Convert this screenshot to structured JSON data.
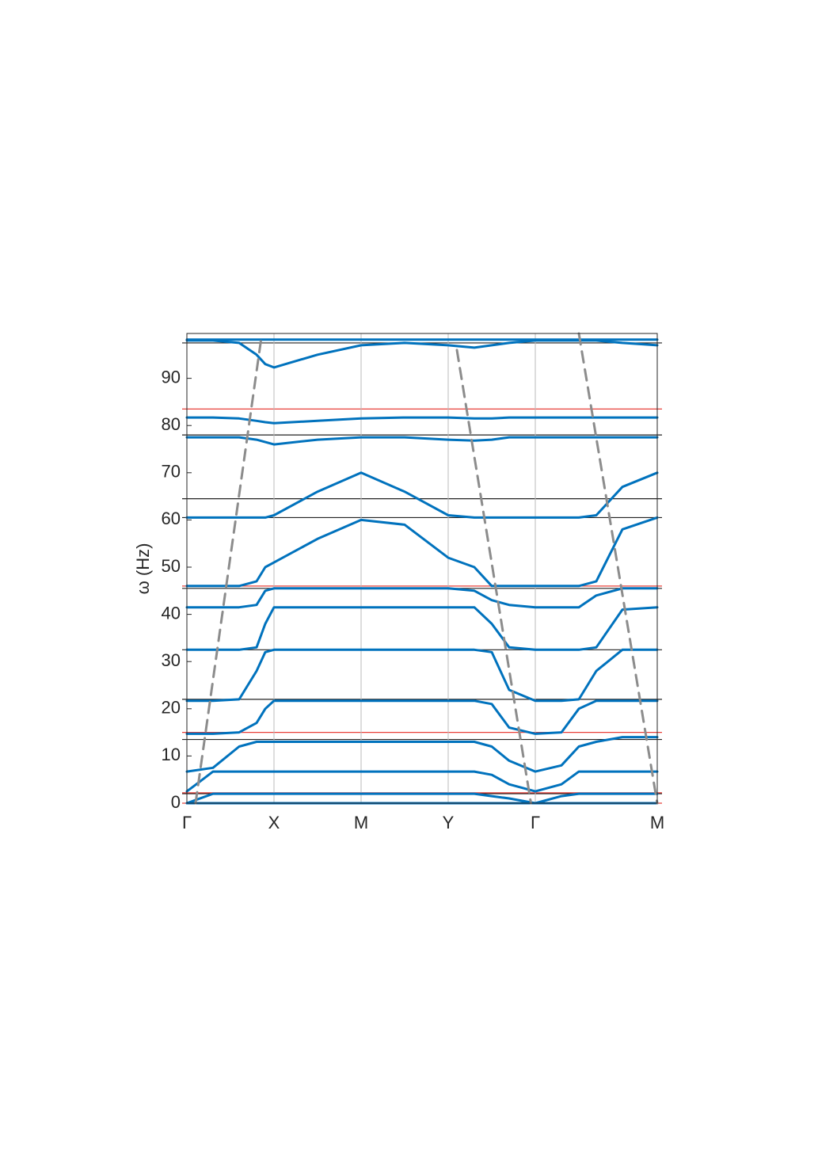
{
  "chart_data": {
    "type": "line",
    "ylabel": "ω (Hz)",
    "xlim": [
      0,
      5.4
    ],
    "ylim": [
      0,
      99.5
    ],
    "xticks": [
      {
        "value": 0,
        "label": "Γ"
      },
      {
        "value": 1,
        "label": "X"
      },
      {
        "value": 2,
        "label": "M"
      },
      {
        "value": 3,
        "label": "Y"
      },
      {
        "value": 4,
        "label": "Γ"
      },
      {
        "value": 5.4,
        "label": "M"
      }
    ],
    "yticks": [
      0,
      10,
      20,
      30,
      40,
      50,
      60,
      70,
      80,
      90
    ],
    "x": [
      0,
      0.3,
      0.6,
      0.8,
      0.9,
      1,
      1.5,
      2,
      2.5,
      3,
      3.3,
      3.5,
      3.7,
      4,
      4.3,
      4.5,
      4.7,
      5,
      5.4
    ],
    "series": [
      {
        "color": "#0072bd",
        "values": [
          0,
          0,
          0,
          0,
          0,
          0,
          0,
          0,
          0,
          0,
          0,
          0,
          0,
          0,
          0,
          0,
          0,
          0,
          0
        ]
      },
      {
        "color": "#0072bd",
        "values": [
          0,
          2,
          2,
          2,
          2,
          2,
          2,
          2,
          2,
          2,
          2,
          1.5,
          1,
          0,
          1.5,
          2,
          2,
          2,
          2
        ]
      },
      {
        "color": "#0072bd",
        "values": [
          2.5,
          6.7,
          6.7,
          6.7,
          6.7,
          6.7,
          6.7,
          6.7,
          6.7,
          6.7,
          6.7,
          6,
          4,
          2.5,
          4,
          6.7,
          6.7,
          6.7,
          6.7
        ]
      },
      {
        "color": "#0072bd",
        "values": [
          6.7,
          7.5,
          12,
          13,
          13,
          13,
          13,
          13,
          13,
          13,
          13,
          12,
          9,
          6.7,
          8,
          12,
          13,
          14,
          14
        ]
      },
      {
        "color": "#0072bd",
        "values": [
          14.7,
          14.7,
          15,
          17,
          20,
          21.7,
          21.7,
          21.7,
          21.7,
          21.7,
          21.7,
          21,
          16,
          14.7,
          15,
          20,
          21.7,
          21.7,
          21.7
        ]
      },
      {
        "color": "#0072bd",
        "values": [
          21.7,
          21.7,
          22,
          28,
          32,
          32.5,
          32.5,
          32.5,
          32.5,
          32.5,
          32.5,
          32,
          24,
          21.7,
          21.7,
          22,
          28,
          32.5,
          32.5
        ]
      },
      {
        "color": "#0072bd",
        "values": [
          32.5,
          32.5,
          32.5,
          33,
          38,
          41.5,
          41.5,
          41.5,
          41.5,
          41.5,
          41.5,
          38,
          33,
          32.5,
          32.5,
          32.5,
          33,
          41,
          41.5
        ]
      },
      {
        "color": "#0072bd",
        "values": [
          41.5,
          41.5,
          41.5,
          42,
          45,
          45.5,
          45.5,
          45.5,
          45.5,
          45.5,
          45,
          43,
          42,
          41.5,
          41.5,
          41.5,
          44,
          45.5,
          45.5
        ]
      },
      {
        "color": "#0072bd",
        "values": [
          46,
          46,
          46,
          47,
          50,
          51,
          56,
          60,
          59,
          52,
          50,
          46,
          46,
          46,
          46,
          46,
          47,
          58,
          60.5
        ]
      },
      {
        "color": "#0072bd",
        "values": [
          60.5,
          60.5,
          60.5,
          60.5,
          60.5,
          61,
          66,
          70,
          66,
          61,
          60.5,
          60.5,
          60.5,
          60.5,
          60.5,
          60.5,
          61,
          67,
          70
        ]
      },
      {
        "color": "#0072bd",
        "values": [
          77.5,
          77.5,
          77.5,
          77,
          76.5,
          76,
          77,
          77.5,
          77.5,
          77,
          76.8,
          77,
          77.5,
          77.5,
          77.5,
          77.5,
          77.5,
          77.5,
          77.5
        ]
      },
      {
        "color": "#0072bd",
        "values": [
          81.7,
          81.7,
          81.5,
          81,
          80.7,
          80.5,
          81,
          81.5,
          81.7,
          81.7,
          81.5,
          81.5,
          81.7,
          81.7,
          81.7,
          81.7,
          81.7,
          81.7,
          81.7
        ]
      },
      {
        "color": "#0072bd",
        "values": [
          98,
          98,
          97.5,
          95,
          93,
          92.3,
          95,
          97,
          97.5,
          97,
          96.5,
          97,
          97.5,
          98,
          98,
          98,
          98,
          97.5,
          97
        ]
      },
      {
        "color": "#0072bd",
        "values": [
          98.2,
          98.2,
          98.2,
          98.2,
          98.2,
          98.2,
          98.2,
          98.2,
          98.2,
          98.2,
          98.2,
          98.2,
          98.2,
          98.2,
          98.2,
          98.2,
          98.2,
          98.2,
          98.2
        ]
      },
      {
        "color": "#8c8c8c",
        "dashed": true,
        "x": [
          0.1,
          0.85
        ],
        "values": [
          0,
          98
        ]
      },
      {
        "color": "#8c8c8c",
        "dashed": true,
        "x": [
          3.1,
          3.95
        ],
        "values": [
          96,
          0
        ]
      },
      {
        "color": "#8c8c8c",
        "dashed": true,
        "x": [
          4.5,
          5.4
        ],
        "values": [
          99.5,
          0
        ]
      }
    ],
    "hlines": [
      {
        "color": "#e8413a",
        "values": [
          0,
          2.2,
          15,
          46,
          83.5
        ]
      },
      {
        "color": "#222222",
        "values": [
          2,
          13.5,
          22,
          32.5,
          45.5,
          60.5,
          64.5,
          78,
          97.5
        ]
      }
    ]
  }
}
